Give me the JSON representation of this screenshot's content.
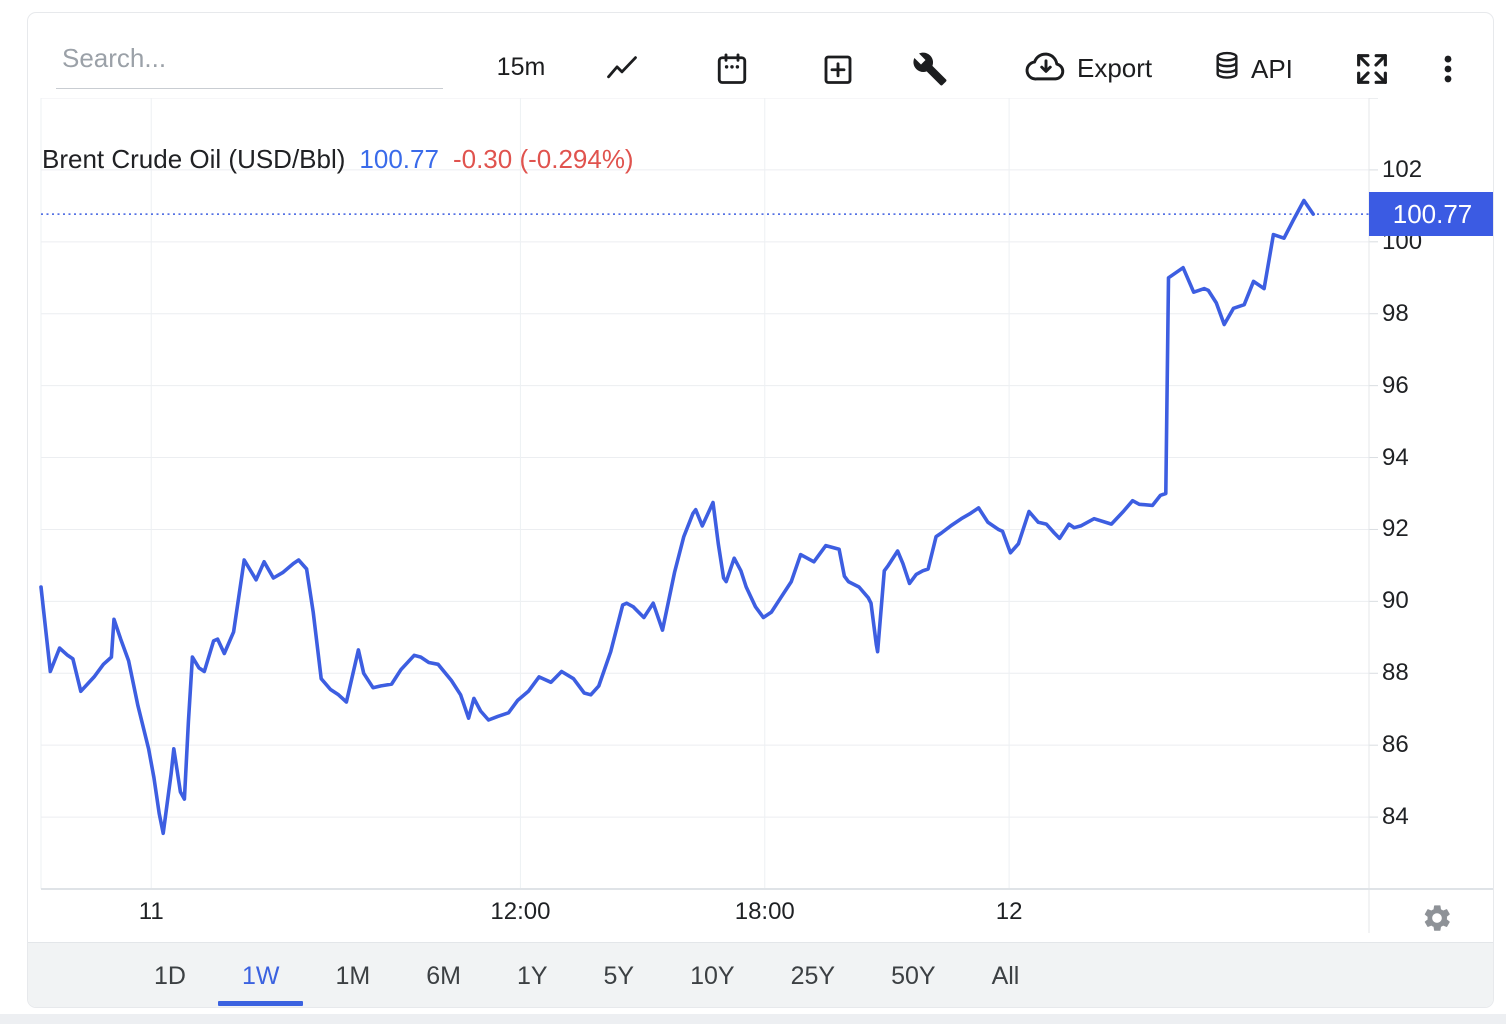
{
  "toolbar": {
    "search_placeholder": "Search...",
    "interval_label": "15m",
    "export_label": "Export",
    "api_label": "API"
  },
  "header": {
    "title": "Brent Crude Oil (USD/Bbl)",
    "price": "100.77",
    "change": "-0.30 (-0.294%)"
  },
  "chart_data": {
    "type": "line",
    "title": "Brent Crude Oil (USD/Bbl)",
    "last_price": 100.77,
    "change": -0.3,
    "change_pct": -0.294,
    "interval": "15m",
    "range": "1W",
    "ylim": [
      82,
      104
    ],
    "y_ticks": [
      102,
      100,
      98,
      96,
      94,
      92,
      90,
      88,
      86,
      84
    ],
    "x_ticks": [
      {
        "label": "11",
        "pos": 0.083
      },
      {
        "label": "12:00",
        "pos": 0.361
      },
      {
        "label": "18:00",
        "pos": 0.545
      },
      {
        "label": "12",
        "pos": 0.729
      }
    ],
    "grid": true,
    "legend_position": "none",
    "reference_line": 100.77,
    "badge_label": "100.77",
    "series": [
      {
        "name": "Brent Crude Oil",
        "points": [
          [
            0.0,
            90.4
          ],
          [
            0.007,
            88.05
          ],
          [
            0.014,
            88.7
          ],
          [
            0.02,
            88.5
          ],
          [
            0.024,
            88.4
          ],
          [
            0.03,
            87.5
          ],
          [
            0.04,
            87.9
          ],
          [
            0.047,
            88.25
          ],
          [
            0.053,
            88.45
          ],
          [
            0.055,
            89.5
          ],
          [
            0.06,
            88.95
          ],
          [
            0.066,
            88.35
          ],
          [
            0.073,
            87.1
          ],
          [
            0.081,
            85.9
          ],
          [
            0.085,
            85.1
          ],
          [
            0.089,
            84.1
          ],
          [
            0.092,
            83.55
          ],
          [
            0.098,
            85.2
          ],
          [
            0.1,
            85.9
          ],
          [
            0.105,
            84.7
          ],
          [
            0.108,
            84.5
          ],
          [
            0.111,
            86.65
          ],
          [
            0.114,
            88.45
          ],
          [
            0.119,
            88.15
          ],
          [
            0.123,
            88.05
          ],
          [
            0.13,
            88.9
          ],
          [
            0.133,
            88.95
          ],
          [
            0.138,
            88.55
          ],
          [
            0.145,
            89.15
          ],
          [
            0.153,
            91.15
          ],
          [
            0.162,
            90.6
          ],
          [
            0.168,
            91.1
          ],
          [
            0.175,
            90.65
          ],
          [
            0.182,
            90.8
          ],
          [
            0.19,
            91.05
          ],
          [
            0.194,
            91.15
          ],
          [
            0.2,
            90.9
          ],
          [
            0.205,
            89.7
          ],
          [
            0.211,
            87.85
          ],
          [
            0.218,
            87.55
          ],
          [
            0.224,
            87.4
          ],
          [
            0.23,
            87.2
          ],
          [
            0.239,
            88.65
          ],
          [
            0.243,
            88.0
          ],
          [
            0.25,
            87.6
          ],
          [
            0.256,
            87.65
          ],
          [
            0.264,
            87.7
          ],
          [
            0.271,
            88.1
          ],
          [
            0.281,
            88.5
          ],
          [
            0.286,
            88.45
          ],
          [
            0.292,
            88.3
          ],
          [
            0.299,
            88.25
          ],
          [
            0.309,
            87.8
          ],
          [
            0.316,
            87.4
          ],
          [
            0.322,
            86.75
          ],
          [
            0.326,
            87.3
          ],
          [
            0.331,
            86.95
          ],
          [
            0.337,
            86.7
          ],
          [
            0.344,
            86.8
          ],
          [
            0.352,
            86.9
          ],
          [
            0.359,
            87.25
          ],
          [
            0.367,
            87.5
          ],
          [
            0.375,
            87.9
          ],
          [
            0.384,
            87.75
          ],
          [
            0.392,
            88.05
          ],
          [
            0.401,
            87.85
          ],
          [
            0.409,
            87.45
          ],
          [
            0.414,
            87.4
          ],
          [
            0.42,
            87.65
          ],
          [
            0.429,
            88.6
          ],
          [
            0.438,
            89.9
          ],
          [
            0.441,
            89.95
          ],
          [
            0.446,
            89.85
          ],
          [
            0.454,
            89.55
          ],
          [
            0.461,
            89.95
          ],
          [
            0.468,
            89.2
          ],
          [
            0.477,
            90.8
          ],
          [
            0.484,
            91.8
          ],
          [
            0.491,
            92.45
          ],
          [
            0.493,
            92.55
          ],
          [
            0.498,
            92.1
          ],
          [
            0.506,
            92.75
          ],
          [
            0.51,
            91.6
          ],
          [
            0.514,
            90.65
          ],
          [
            0.516,
            90.55
          ],
          [
            0.522,
            91.2
          ],
          [
            0.527,
            90.85
          ],
          [
            0.531,
            90.4
          ],
          [
            0.538,
            89.85
          ],
          [
            0.544,
            89.55
          ],
          [
            0.55,
            89.7
          ],
          [
            0.557,
            90.1
          ],
          [
            0.565,
            90.55
          ],
          [
            0.572,
            91.3
          ],
          [
            0.582,
            91.1
          ],
          [
            0.591,
            91.55
          ],
          [
            0.601,
            91.45
          ],
          [
            0.605,
            90.7
          ],
          [
            0.608,
            90.55
          ],
          [
            0.616,
            90.4
          ],
          [
            0.623,
            90.1
          ],
          [
            0.625,
            89.95
          ],
          [
            0.629,
            88.8
          ],
          [
            0.63,
            88.6
          ],
          [
            0.635,
            90.85
          ],
          [
            0.638,
            91.0
          ],
          [
            0.645,
            91.4
          ],
          [
            0.649,
            91.05
          ],
          [
            0.654,
            90.5
          ],
          [
            0.659,
            90.75
          ],
          [
            0.664,
            90.85
          ],
          [
            0.668,
            90.9
          ],
          [
            0.674,
            91.8
          ],
          [
            0.678,
            91.9
          ],
          [
            0.685,
            92.1
          ],
          [
            0.693,
            92.3
          ],
          [
            0.7,
            92.45
          ],
          [
            0.706,
            92.6
          ],
          [
            0.713,
            92.2
          ],
          [
            0.721,
            92.0
          ],
          [
            0.724,
            91.95
          ],
          [
            0.73,
            91.35
          ],
          [
            0.736,
            91.6
          ],
          [
            0.744,
            92.5
          ],
          [
            0.751,
            92.2
          ],
          [
            0.757,
            92.15
          ],
          [
            0.763,
            91.9
          ],
          [
            0.767,
            91.75
          ],
          [
            0.774,
            92.15
          ],
          [
            0.778,
            92.05
          ],
          [
            0.783,
            92.1
          ],
          [
            0.793,
            92.3
          ],
          [
            0.806,
            92.15
          ],
          [
            0.815,
            92.5
          ],
          [
            0.822,
            92.8
          ],
          [
            0.827,
            92.7
          ],
          [
            0.837,
            92.67
          ],
          [
            0.843,
            92.95
          ],
          [
            0.847,
            93.0
          ],
          [
            0.849,
            99.0
          ],
          [
            0.86,
            99.28
          ],
          [
            0.868,
            98.6
          ],
          [
            0.876,
            98.7
          ],
          [
            0.879,
            98.65
          ],
          [
            0.885,
            98.3
          ],
          [
            0.891,
            97.7
          ],
          [
            0.898,
            98.15
          ],
          [
            0.906,
            98.25
          ],
          [
            0.913,
            98.9
          ],
          [
            0.921,
            98.7
          ],
          [
            0.928,
            100.2
          ],
          [
            0.936,
            100.1
          ],
          [
            0.943,
            100.6
          ],
          [
            0.951,
            101.15
          ],
          [
            0.958,
            100.77
          ]
        ]
      }
    ]
  },
  "tabs": {
    "items": [
      "1D",
      "1W",
      "1M",
      "6M",
      "1Y",
      "5Y",
      "10Y",
      "25Y",
      "50Y",
      "All"
    ],
    "active": "1W"
  },
  "colors": {
    "line": "#3D5EE1",
    "badge_bg": "#3B5BE3",
    "price_text": "#3A6BEA",
    "change_text": "#E0534E",
    "active_tab": "#3B62E0",
    "grid": "#ECEEF1",
    "axis_line": "#DFE3E7"
  }
}
